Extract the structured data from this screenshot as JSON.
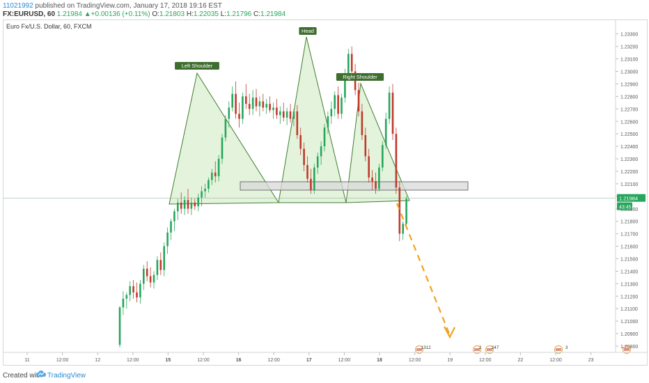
{
  "header": {
    "user": "11021992",
    "published": "published on TradingView.com, January 17, 2018 19:16 EST",
    "symbol": "FX:EURUSD, 60",
    "last": "1.21984",
    "change": "+0.00136 (+0.11%)",
    "o_label": "O:",
    "o_value": "1.21803",
    "h_label": "H:",
    "h_value": "1.22035",
    "l_label": "L:",
    "l_value": "1.21796",
    "c_label": "C:",
    "c_value": "1.21984"
  },
  "chart_data": {
    "type": "candlestick",
    "title": "Euro Fx/U.S. Dollar, 60, FXCM",
    "ylim": [
      1.2075,
      1.2341
    ],
    "y_ticks": [
      "1.23300",
      "1.23200",
      "1.23100",
      "1.23000",
      "1.22900",
      "1.22800",
      "1.22700",
      "1.22600",
      "1.22500",
      "1.22400",
      "1.22300",
      "1.22200",
      "1.22100",
      "1.22000",
      "1.21900",
      "1.21800",
      "1.21700",
      "1.21600",
      "1.21500",
      "1.21400",
      "1.21300",
      "1.21200",
      "1.21100",
      "1.21000",
      "1.20900",
      "1.20800"
    ],
    "x_ticks": [
      "11",
      "12:00",
      "12",
      "12:00",
      "15",
      "12:00",
      "16",
      "12:00",
      "17",
      "12:00",
      "18",
      "12:00",
      "19",
      "12:00",
      "22",
      "12:00",
      "23",
      "12:00"
    ],
    "bold_x_ticks": [
      "15",
      "16",
      "17",
      "18"
    ],
    "price_label": "1.21984",
    "countdown_label": "43:45",
    "annotations": [
      "Left Shoulder",
      "Head",
      "Right Shoulder"
    ],
    "candles": [
      [
        1.2081,
        1.2112,
        1.2079,
        1.2111
      ],
      [
        1.2111,
        1.2124,
        1.2105,
        1.2118
      ],
      [
        1.2118,
        1.2123,
        1.211,
        1.2121
      ],
      [
        1.2121,
        1.2132,
        1.2116,
        1.2128
      ],
      [
        1.2128,
        1.2133,
        1.2118,
        1.2123
      ],
      [
        1.2123,
        1.2131,
        1.2115,
        1.2119
      ],
      [
        1.2119,
        1.2133,
        1.2114,
        1.213
      ],
      [
        1.213,
        1.2145,
        1.2125,
        1.2142
      ],
      [
        1.2142,
        1.2148,
        1.2132,
        1.2136
      ],
      [
        1.2136,
        1.2143,
        1.2127,
        1.2131
      ],
      [
        1.2131,
        1.214,
        1.2126,
        1.2137
      ],
      [
        1.2137,
        1.2152,
        1.2133,
        1.2149
      ],
      [
        1.2149,
        1.2155,
        1.2137,
        1.2141
      ],
      [
        1.2141,
        1.2163,
        1.2136,
        1.216
      ],
      [
        1.216,
        1.2175,
        1.2154,
        1.2171
      ],
      [
        1.2171,
        1.2182,
        1.2165,
        1.218
      ],
      [
        1.218,
        1.219,
        1.2172,
        1.2188
      ],
      [
        1.2188,
        1.2198,
        1.2181,
        1.2195
      ],
      [
        1.2195,
        1.2203,
        1.2186,
        1.219
      ],
      [
        1.219,
        1.22,
        1.2185,
        1.2197
      ],
      [
        1.2197,
        1.2206,
        1.2186,
        1.219
      ],
      [
        1.219,
        1.2199,
        1.2185,
        1.2195
      ],
      [
        1.2195,
        1.2198,
        1.2189,
        1.2192
      ],
      [
        1.2192,
        1.2202,
        1.2188,
        1.2199
      ],
      [
        1.2199,
        1.2208,
        1.2192,
        1.2204
      ],
      [
        1.2204,
        1.221,
        1.2199,
        1.2206
      ],
      [
        1.2206,
        1.2215,
        1.2203,
        1.2213
      ],
      [
        1.2213,
        1.2222,
        1.2209,
        1.2219
      ],
      [
        1.2219,
        1.2228,
        1.2211,
        1.2216
      ],
      [
        1.2216,
        1.2233,
        1.2212,
        1.223
      ],
      [
        1.223,
        1.225,
        1.2226,
        1.2247
      ],
      [
        1.2247,
        1.2265,
        1.2244,
        1.2262
      ],
      [
        1.2262,
        1.2276,
        1.2255,
        1.2271
      ],
      [
        1.2271,
        1.2288,
        1.2268,
        1.2282
      ],
      [
        1.2282,
        1.2292,
        1.2262,
        1.2266
      ],
      [
        1.2266,
        1.2275,
        1.2255,
        1.2262
      ],
      [
        1.2262,
        1.2283,
        1.2258,
        1.228
      ],
      [
        1.228,
        1.229,
        1.227,
        1.2274
      ],
      [
        1.2274,
        1.2282,
        1.2265,
        1.227
      ],
      [
        1.227,
        1.2285,
        1.2265,
        1.2279
      ],
      [
        1.2279,
        1.2286,
        1.2268,
        1.2272
      ],
      [
        1.2272,
        1.228,
        1.2264,
        1.2276
      ],
      [
        1.2276,
        1.2282,
        1.2268,
        1.2271
      ],
      [
        1.2271,
        1.2278,
        1.2266,
        1.2274
      ],
      [
        1.2274,
        1.228,
        1.2267,
        1.2269
      ],
      [
        1.2269,
        1.2275,
        1.2262,
        1.2271
      ],
      [
        1.2271,
        1.2278,
        1.2262,
        1.2265
      ],
      [
        1.2265,
        1.2272,
        1.2258,
        1.2268
      ],
      [
        1.2268,
        1.2275,
        1.226,
        1.2263
      ],
      [
        1.2263,
        1.2271,
        1.2257,
        1.2268
      ],
      [
        1.2268,
        1.2274,
        1.2259,
        1.2262
      ],
      [
        1.2262,
        1.227,
        1.2256,
        1.2268
      ],
      [
        1.2268,
        1.2273,
        1.2246,
        1.2249
      ],
      [
        1.2249,
        1.2255,
        1.2233,
        1.2238
      ],
      [
        1.2238,
        1.2243,
        1.222,
        1.2225
      ],
      [
        1.2225,
        1.2232,
        1.2211,
        1.2214
      ],
      [
        1.2214,
        1.2222,
        1.2202,
        1.2205
      ],
      [
        1.2205,
        1.2226,
        1.2202,
        1.2223
      ],
      [
        1.2223,
        1.2235,
        1.2218,
        1.2232
      ],
      [
        1.2232,
        1.2244,
        1.2225,
        1.224
      ],
      [
        1.224,
        1.2258,
        1.2236,
        1.2255
      ],
      [
        1.2255,
        1.2268,
        1.225,
        1.2264
      ],
      [
        1.2264,
        1.2276,
        1.2258,
        1.227
      ],
      [
        1.227,
        1.2284,
        1.2264,
        1.2281
      ],
      [
        1.2281,
        1.2288,
        1.2262,
        1.2266
      ],
      [
        1.2266,
        1.2282,
        1.2262,
        1.2279
      ],
      [
        1.2279,
        1.2302,
        1.2275,
        1.2298
      ],
      [
        1.2298,
        1.2318,
        1.2294,
        1.2314
      ],
      [
        1.2314,
        1.232,
        1.2295,
        1.23
      ],
      [
        1.23,
        1.2306,
        1.2281,
        1.2285
      ],
      [
        1.2285,
        1.2291,
        1.2264,
        1.2268
      ],
      [
        1.2268,
        1.2274,
        1.2245,
        1.2249
      ],
      [
        1.2249,
        1.2255,
        1.2228,
        1.2232
      ],
      [
        1.2232,
        1.2238,
        1.2211,
        1.2215
      ],
      [
        1.2215,
        1.2221,
        1.2205,
        1.2212
      ],
      [
        1.2212,
        1.2219,
        1.2202,
        1.2206
      ],
      [
        1.2206,
        1.2226,
        1.2204,
        1.2223
      ],
      [
        1.2223,
        1.2244,
        1.222,
        1.2241
      ],
      [
        1.2241,
        1.2267,
        1.2238,
        1.2262
      ],
      [
        1.2262,
        1.2288,
        1.2258,
        1.2283
      ],
      [
        1.2283,
        1.229,
        1.2245,
        1.225
      ],
      [
        1.225,
        1.2255,
        1.2202,
        1.2207
      ],
      [
        1.2207,
        1.2212,
        1.2164,
        1.217
      ],
      [
        1.217,
        1.218,
        1.2165,
        1.2178
      ],
      [
        1.2178,
        1.22,
        1.2176,
        1.2198
      ]
    ]
  },
  "pattern": {
    "left_shoulder_label": "Left Shoulder",
    "head_label": "Head",
    "right_shoulder_label": "Right Shoulder"
  },
  "calendar_events": [
    {
      "label": "13",
      "sub": "12"
    },
    {
      "label": "2",
      "sub": ""
    },
    {
      "label": "24",
      "sub": "7"
    },
    {
      "label": "",
      "sub": "3"
    },
    {
      "label": "",
      "sub": ""
    }
  ],
  "footer": {
    "created": "Created with",
    "brand": "TradingView"
  },
  "colors": {
    "up": "#26a65b",
    "down": "#c0392b",
    "triangle_fill": "#d6ecc9",
    "triangle_stroke": "#3e7d2f",
    "label_bg": "#3e6e2f",
    "arrow": "#f0a21c",
    "zone": "#d9d9d9"
  }
}
